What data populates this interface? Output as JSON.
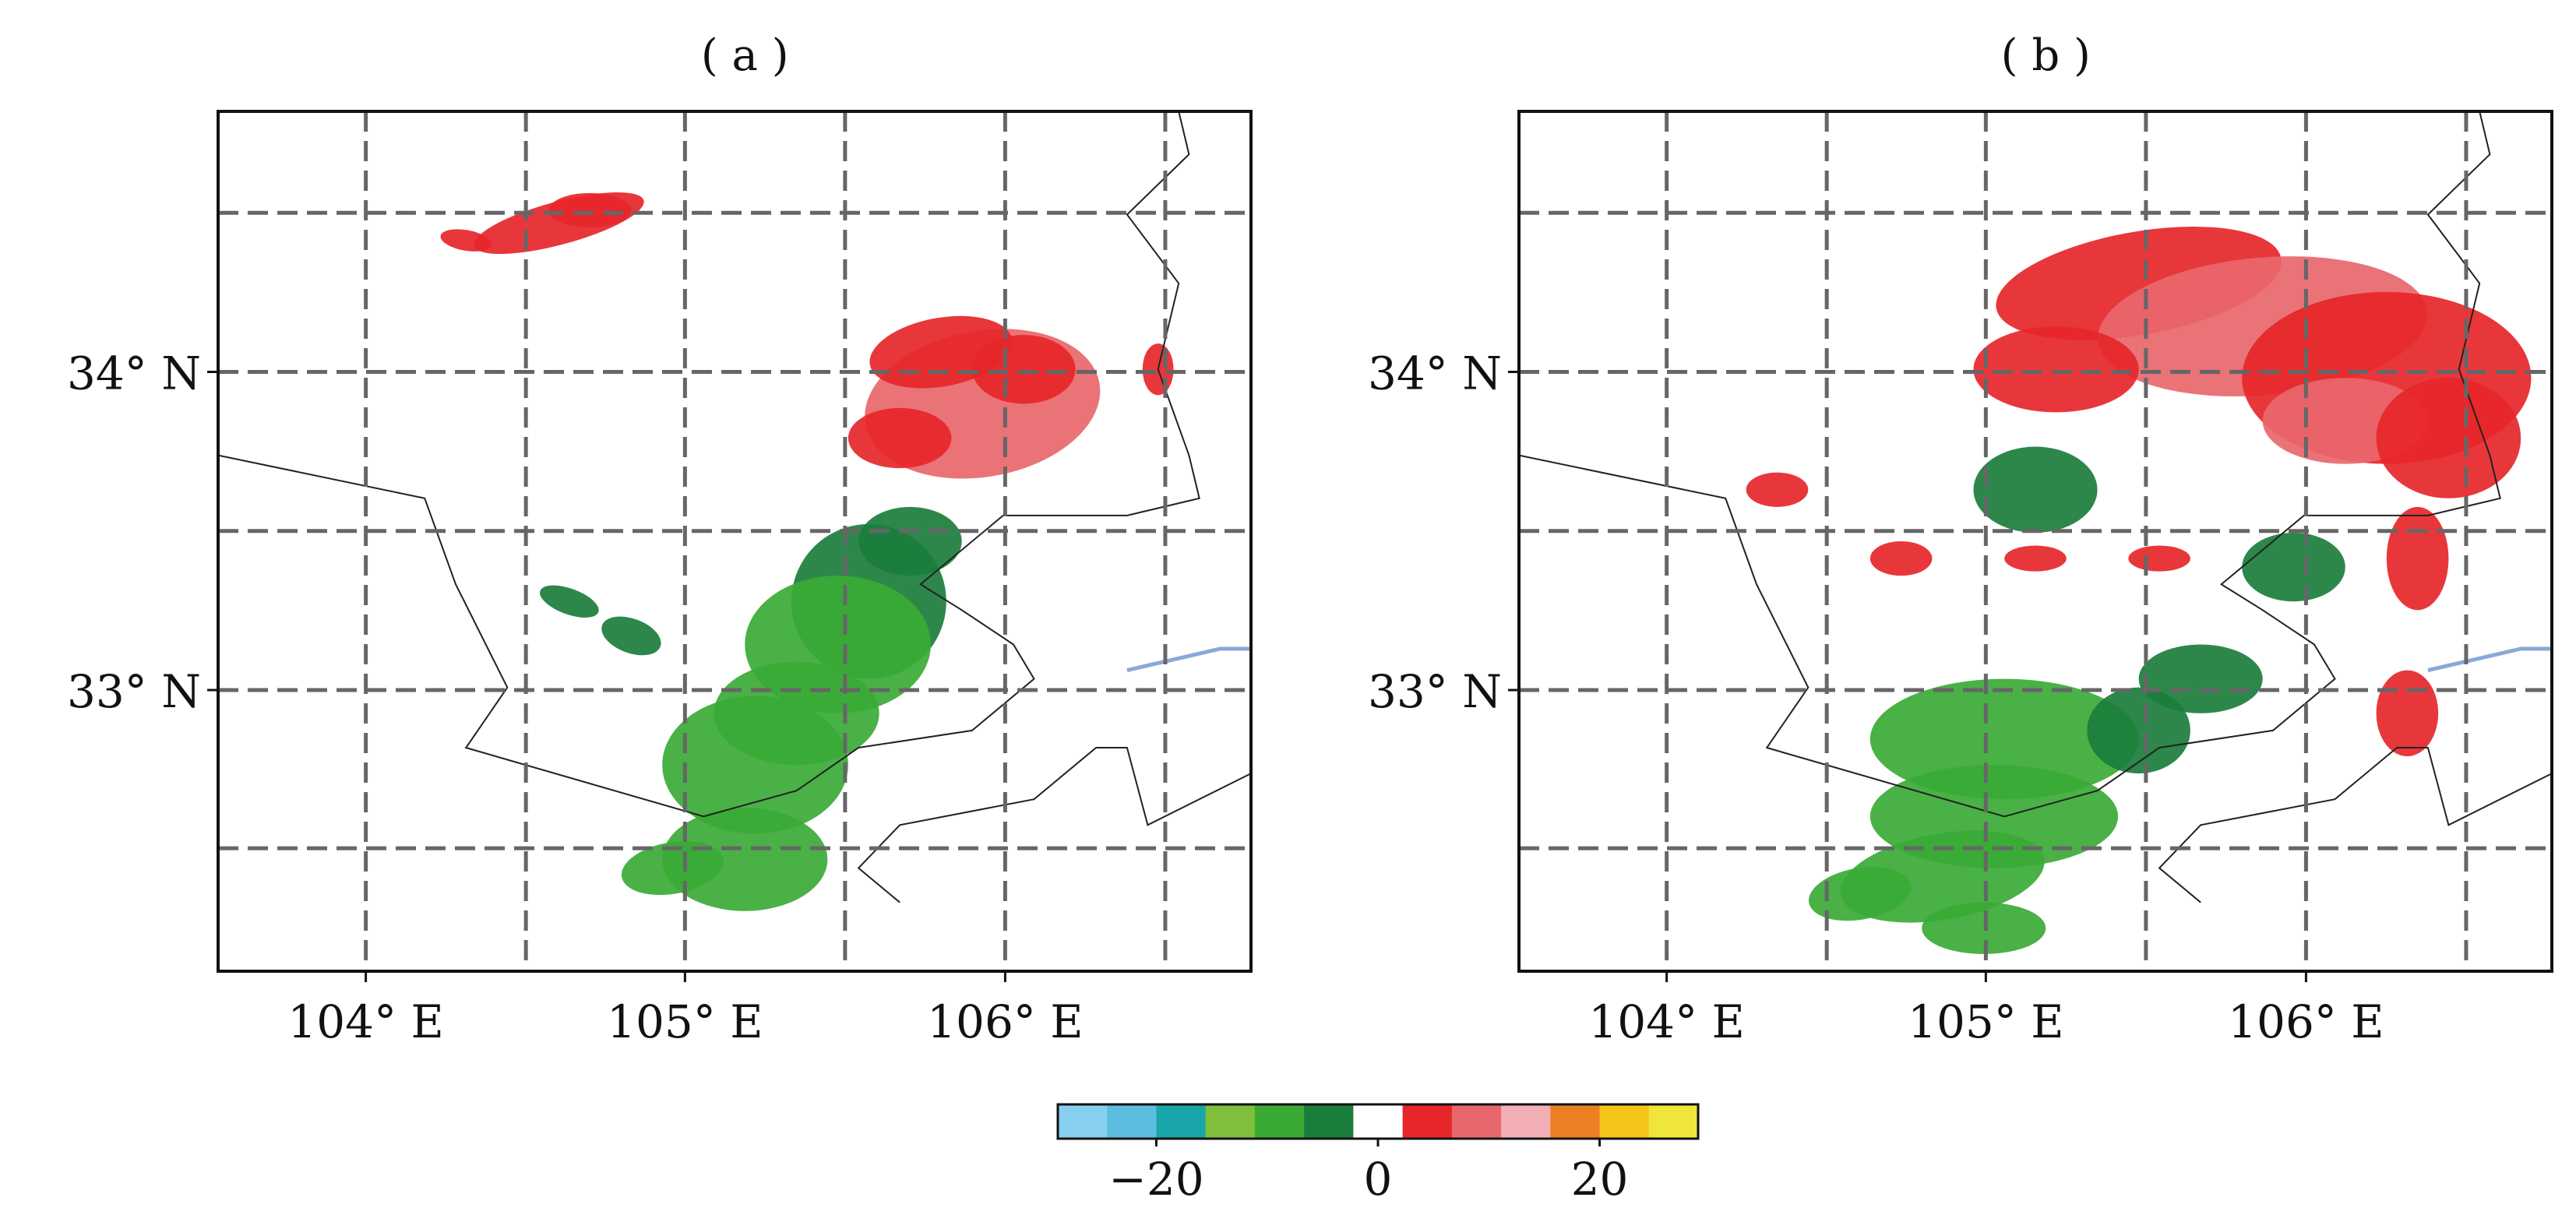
{
  "panels": [
    {
      "id": "a",
      "title": "( a )",
      "lat_ticks": [
        "34° N",
        "33° N"
      ],
      "lon_ticks": [
        "104° E",
        "105° E",
        "106° E"
      ]
    },
    {
      "id": "b",
      "title": "( b )",
      "lat_ticks": [
        "34° N",
        "33° N"
      ],
      "lon_ticks": [
        "104° E",
        "105° E",
        "106° E"
      ]
    }
  ],
  "colorbar": {
    "tick_labels": [
      "−20",
      "0",
      "20"
    ],
    "colors": [
      "#86cfee",
      "#5cbde0",
      "#1aa5a8",
      "#7fbf3c",
      "#3aaa35",
      "#1b7d3c",
      "#ffffff",
      "#e6262a",
      "#e8676c",
      "#f2b0b6",
      "#ec7f23",
      "#f4c518",
      "#f0e53a"
    ]
  },
  "palette": {
    "approach": "#3aaa35",
    "approach_dark": "#1b7d3c",
    "recede": "#e6262a",
    "recede_light": "#e8676c",
    "boundary": "#222222",
    "river": "#8aa8d8",
    "grid": "#666666"
  }
}
